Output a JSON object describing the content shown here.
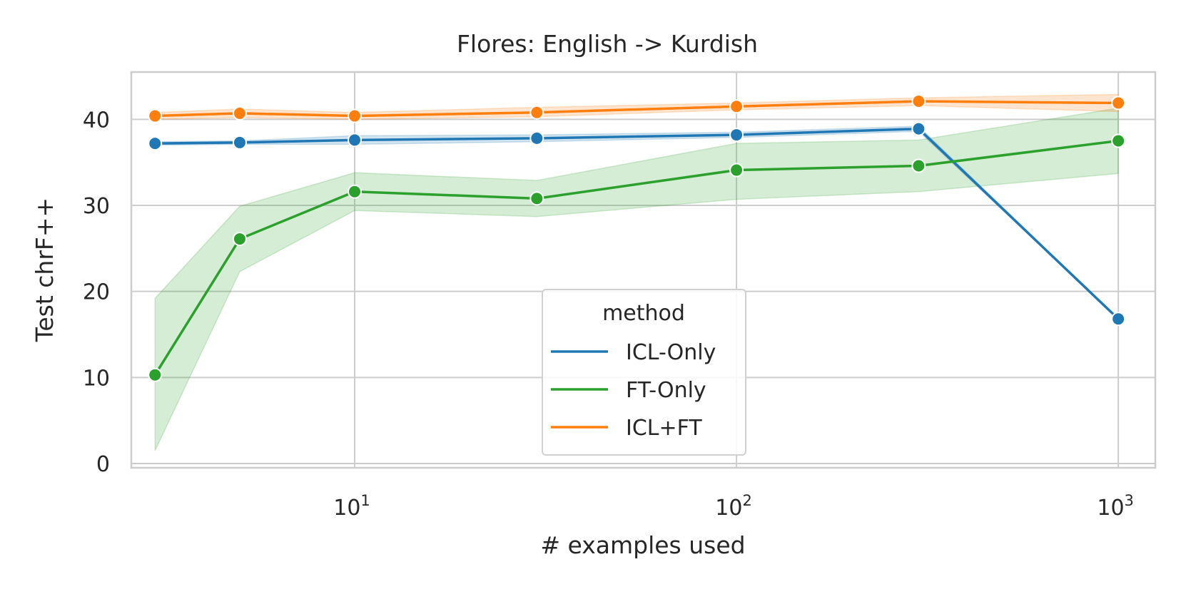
{
  "chart_data": {
    "type": "line",
    "title": "Flores: English -> Kurdish",
    "xlabel": "# examples used",
    "ylabel": "Test chrF++",
    "xscale": "log",
    "xlim": [
      2.6,
      1250
    ],
    "ylim": [
      -0.5,
      45.5
    ],
    "yticks": [
      0,
      10,
      20,
      30,
      40
    ],
    "xticks": [
      {
        "value": 10,
        "base": "10",
        "exp": "1"
      },
      {
        "value": 100,
        "base": "10",
        "exp": "2"
      },
      {
        "value": 1000,
        "base": "10",
        "exp": "3"
      }
    ],
    "grid": true,
    "legend": {
      "title": "method",
      "placement": "lower center"
    },
    "x": [
      3,
      5,
      10,
      30,
      100,
      300,
      1000
    ],
    "series": [
      {
        "name": "ICL-Only",
        "color": "#1f77b4",
        "values": [
          37.2,
          37.3,
          37.6,
          37.8,
          38.2,
          38.9,
          16.8
        ],
        "ci_low": [
          37.0,
          37.1,
          37.1,
          37.4,
          37.9,
          38.6,
          16.8
        ],
        "ci_high": [
          37.4,
          37.5,
          38.1,
          38.2,
          38.5,
          39.2,
          16.8
        ]
      },
      {
        "name": "FT-Only",
        "color": "#2ca02c",
        "values": [
          10.3,
          26.1,
          31.6,
          30.8,
          34.1,
          34.6,
          37.5
        ],
        "ci_low": [
          1.5,
          22.3,
          29.4,
          28.7,
          30.7,
          31.6,
          33.7
        ],
        "ci_high": [
          19.2,
          29.9,
          33.8,
          32.9,
          37.2,
          37.6,
          41.3
        ]
      },
      {
        "name": "ICL+FT",
        "color": "#ff7f0e",
        "values": [
          40.4,
          40.7,
          40.4,
          40.8,
          41.5,
          42.1,
          41.9
        ],
        "ci_low": [
          40.0,
          40.2,
          40.0,
          40.3,
          41.1,
          41.6,
          40.9
        ],
        "ci_high": [
          40.8,
          41.2,
          40.8,
          41.4,
          41.9,
          42.5,
          42.9
        ]
      }
    ]
  }
}
